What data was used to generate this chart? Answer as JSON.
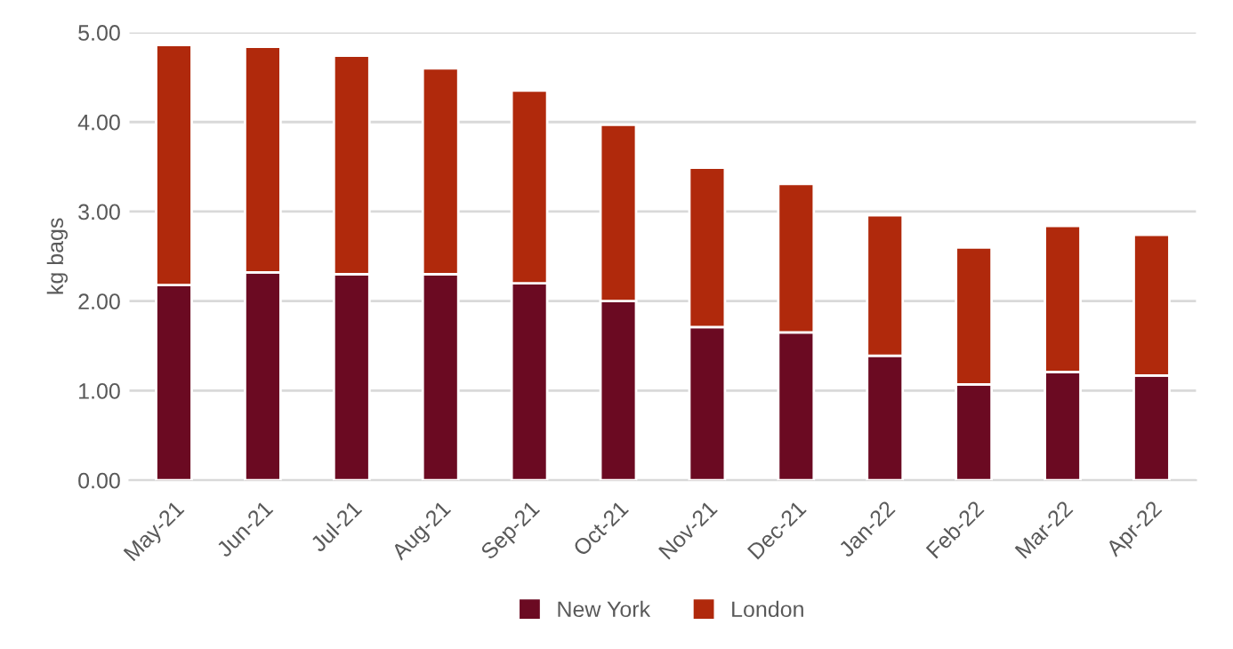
{
  "chart_data": {
    "type": "bar",
    "stacked": true,
    "ylabel": "kg bags",
    "categories": [
      "May-21",
      "Jun-21",
      "Jul-21",
      "Aug-21",
      "Sep-21",
      "Oct-21",
      "Nov-21",
      "Dec-21",
      "Jan-22",
      "Feb-22",
      "Mar-22",
      "Apr-22"
    ],
    "series": [
      {
        "name": "New York",
        "color": "#6b0a22",
        "values": [
          2.18,
          2.32,
          2.3,
          2.3,
          2.2,
          2.0,
          1.71,
          1.65,
          1.39,
          1.07,
          1.21,
          1.17
        ]
      },
      {
        "name": "London",
        "color": "#b0290c",
        "values": [
          2.68,
          2.52,
          2.44,
          2.3,
          2.15,
          1.97,
          1.78,
          1.66,
          1.57,
          1.53,
          1.63,
          1.57
        ]
      }
    ],
    "ylim": [
      0,
      5
    ],
    "yticks": [
      {
        "value": 0,
        "label": "0.00"
      },
      {
        "value": 1,
        "label": "1.00"
      },
      {
        "value": 2,
        "label": "2.00"
      },
      {
        "value": 3,
        "label": "3.00"
      },
      {
        "value": 4,
        "label": "4.00"
      },
      {
        "value": 5,
        "label": "5.00"
      }
    ],
    "grid": "y",
    "legend": "bottom"
  }
}
